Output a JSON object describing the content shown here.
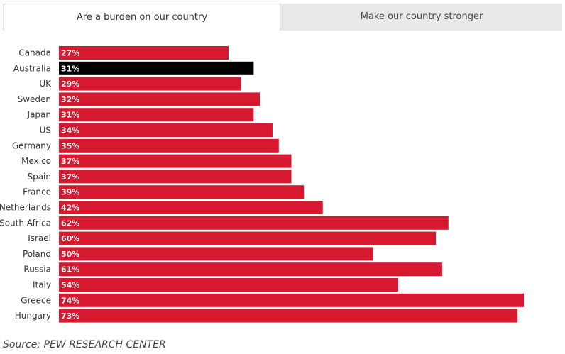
{
  "tabs": [
    {
      "label": "Are a burden on our country",
      "active": true
    },
    {
      "label": "Make our country stronger",
      "active": false
    }
  ],
  "colors": {
    "bar": "#d7192f",
    "highlight": "#000000",
    "text": "#333333",
    "tab_bg": "#e9e9e9"
  },
  "chart_data": {
    "type": "bar",
    "orientation": "horizontal",
    "title": "Are a burden on our country",
    "categories": [
      "Canada",
      "Australia",
      "UK",
      "Sweden",
      "Japan",
      "US",
      "Germany",
      "Mexico",
      "Spain",
      "France",
      "Netherlands",
      "South Africa",
      "Israel",
      "Poland",
      "Russia",
      "Italy",
      "Greece",
      "Hungary"
    ],
    "values": [
      27,
      31,
      29,
      32,
      31,
      34,
      35,
      37,
      37,
      39,
      42,
      62,
      60,
      50,
      61,
      54,
      74,
      73
    ],
    "value_labels": [
      "27%",
      "31%",
      "29%",
      "32%",
      "31%",
      "34%",
      "35%",
      "37%",
      "37%",
      "39%",
      "42%",
      "62%",
      "60%",
      "50%",
      "61%",
      "54%",
      "74%",
      "73%"
    ],
    "highlighted": [
      "Australia"
    ],
    "xlim": [
      0,
      74
    ],
    "xlabel": "",
    "ylabel": ""
  },
  "source": "Source: PEW RESEARCH CENTER"
}
